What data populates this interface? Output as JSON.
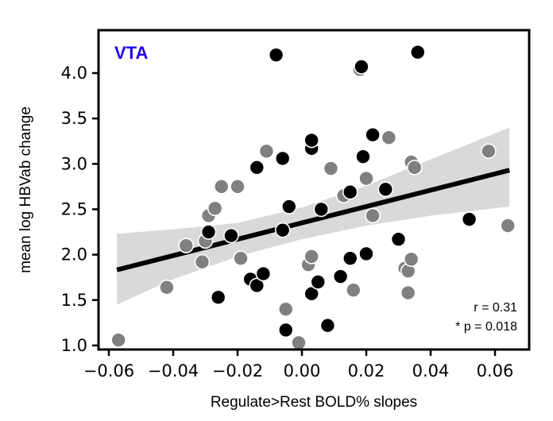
{
  "chart_data": {
    "type": "scatter",
    "title": "VTA",
    "title_color": "#2200ee",
    "xlabel": "Regulate>Rest BOLD% slopes",
    "ylabel": "mean log HBVab change",
    "xlim": [
      -0.064,
      0.068
    ],
    "ylim": [
      0.95,
      4.35
    ],
    "xticks": [
      -0.06,
      -0.04,
      -0.02,
      0.0,
      0.02,
      0.04,
      0.06
    ],
    "xtick_labels": [
      "−0.06",
      "−0.04",
      "−0.02",
      "0.00",
      "0.02",
      "0.04",
      "0.06"
    ],
    "yticks": [
      1.0,
      1.5,
      2.0,
      2.5,
      3.0,
      3.5,
      4.0
    ],
    "ytick_labels": [
      "1.0",
      "1.5",
      "2.0",
      "2.5",
      "3.0",
      "3.5",
      "4.0"
    ],
    "grid": false,
    "annotations": {
      "r_text": "r = 0.31",
      "p_text": "* p = 0.018",
      "placement": "bottom-right"
    },
    "regression": {
      "x_range": [
        -0.0575,
        0.0645
      ],
      "slope": 9.0,
      "intercept": 2.35,
      "ci_lower": [
        [
          -0.0575,
          1.45
        ],
        [
          -0.04,
          1.73
        ],
        [
          -0.02,
          1.98
        ],
        [
          0.0,
          2.17
        ],
        [
          0.02,
          2.32
        ],
        [
          0.04,
          2.43
        ],
        [
          0.0645,
          2.53
        ]
      ],
      "ci_upper": [
        [
          -0.0575,
          2.23
        ],
        [
          -0.04,
          2.28
        ],
        [
          -0.02,
          2.35
        ],
        [
          0.0,
          2.52
        ],
        [
          0.02,
          2.76
        ],
        [
          0.04,
          3.05
        ],
        [
          0.0645,
          3.4
        ]
      ],
      "line_color": "#000000",
      "band_color": "#d9d9d9"
    },
    "series": [
      {
        "name": "group-black",
        "color": "#000000",
        "points": [
          [
            -0.008,
            4.2
          ],
          [
            0.036,
            4.23
          ],
          [
            0.0185,
            4.07
          ],
          [
            0.003,
            3.26
          ],
          [
            0.003,
            3.17
          ],
          [
            0.022,
            3.32
          ],
          [
            -0.006,
            3.06
          ],
          [
            0.019,
            3.08
          ],
          [
            -0.014,
            2.96
          ],
          [
            0.015,
            2.69
          ],
          [
            0.026,
            2.72
          ],
          [
            -0.004,
            2.53
          ],
          [
            0.006,
            2.5
          ],
          [
            -0.029,
            2.25
          ],
          [
            -0.022,
            2.21
          ],
          [
            -0.006,
            2.27
          ],
          [
            0.03,
            2.17
          ],
          [
            0.052,
            2.39
          ],
          [
            0.02,
            2.01
          ],
          [
            0.015,
            1.96
          ],
          [
            -0.016,
            1.73
          ],
          [
            -0.012,
            1.79
          ],
          [
            -0.014,
            1.66
          ],
          [
            0.012,
            1.76
          ],
          [
            0.005,
            1.7
          ],
          [
            0.003,
            1.57
          ],
          [
            -0.026,
            1.53
          ],
          [
            -0.005,
            1.17
          ],
          [
            0.008,
            1.22
          ]
        ]
      },
      {
        "name": "group-gray",
        "color": "#808080",
        "points": [
          [
            0.018,
            4.04
          ],
          [
            0.027,
            3.29
          ],
          [
            -0.011,
            3.14
          ],
          [
            0.058,
            3.14
          ],
          [
            0.009,
            2.95
          ],
          [
            0.034,
            3.02
          ],
          [
            0.035,
            2.96
          ],
          [
            -0.025,
            2.75
          ],
          [
            -0.02,
            2.75
          ],
          [
            0.02,
            2.84
          ],
          [
            -0.027,
            2.51
          ],
          [
            -0.029,
            2.43
          ],
          [
            0.013,
            2.65
          ],
          [
            0.022,
            2.43
          ],
          [
            -0.036,
            2.1
          ],
          [
            -0.03,
            2.15
          ],
          [
            -0.031,
            1.92
          ],
          [
            -0.019,
            1.96
          ],
          [
            0.003,
            1.98
          ],
          [
            0.002,
            1.89
          ],
          [
            0.034,
            1.95
          ],
          [
            0.032,
            1.85
          ],
          [
            0.033,
            1.82
          ],
          [
            0.033,
            1.58
          ],
          [
            0.016,
            1.61
          ],
          [
            -0.042,
            1.64
          ],
          [
            0.064,
            2.32
          ],
          [
            -0.005,
            1.4
          ],
          [
            -0.001,
            1.03
          ],
          [
            -0.057,
            1.06
          ]
        ]
      }
    ]
  }
}
